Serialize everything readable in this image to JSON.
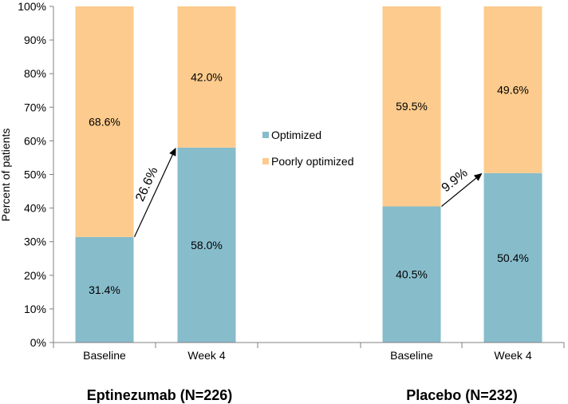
{
  "chart_data": {
    "type": "bar",
    "stacked": true,
    "ylabel": "Percent of patients",
    "ylim": [
      0,
      100
    ],
    "ytick_step": 10,
    "ytick_suffix": "%",
    "colors": {
      "optimized": "#87bccb",
      "poorly": "#fccb8d",
      "axis": "#808080"
    },
    "legend": {
      "placement": "center",
      "entries": [
        "Optimized",
        "Poorly optimized"
      ]
    },
    "groups": [
      {
        "label": "Eptinezumab (N=226)",
        "categories": [
          "Baseline",
          "Week 4"
        ],
        "optimized": [
          31.4,
          58.0
        ],
        "poorly_optimized": [
          68.6,
          42.0
        ],
        "optimized_labels": [
          "31.4%",
          "58.0%"
        ],
        "poorly_labels": [
          "68.6%",
          "42.0%"
        ],
        "change_label": "26.6%"
      },
      {
        "label": "Placebo (N=232)",
        "categories": [
          "Baseline",
          "Week 4"
        ],
        "optimized": [
          40.5,
          50.4
        ],
        "poorly_optimized": [
          59.5,
          49.6
        ],
        "optimized_labels": [
          "40.5%",
          "50.4%"
        ],
        "poorly_labels": [
          "59.5%",
          "49.6%"
        ],
        "change_label": "9.9%"
      }
    ]
  }
}
